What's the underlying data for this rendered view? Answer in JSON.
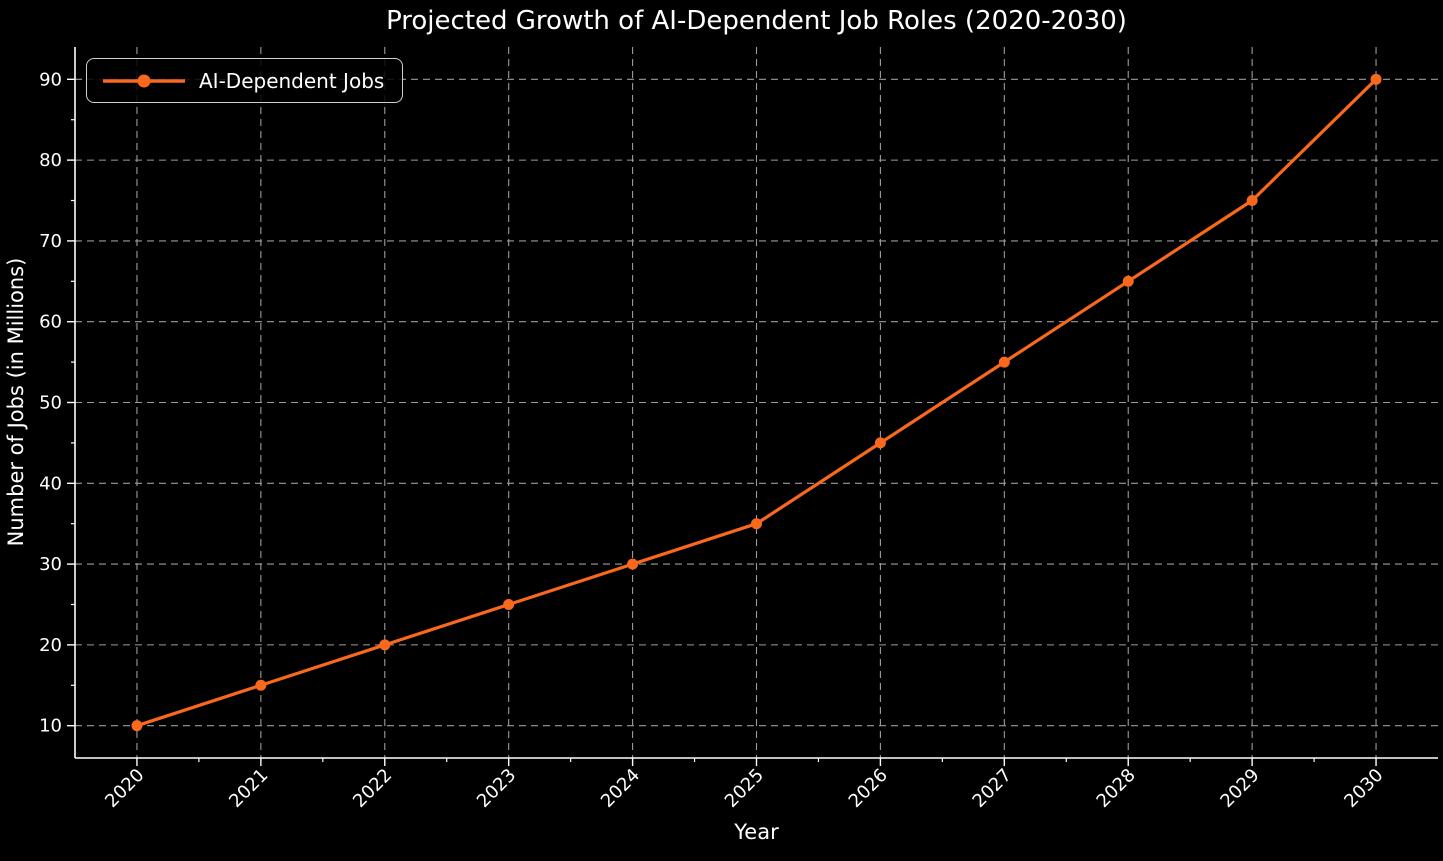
{
  "chart_data": {
    "type": "line",
    "title": "Projected Growth of AI-Dependent Job Roles (2020-2030)",
    "xlabel": "Year",
    "ylabel": "Number of Jobs (in Millions)",
    "categories": [
      2020,
      2021,
      2022,
      2023,
      2024,
      2025,
      2026,
      2027,
      2028,
      2029,
      2030
    ],
    "series": [
      {
        "name": "AI-Dependent Jobs",
        "values": [
          10,
          15,
          20,
          25,
          30,
          35,
          45,
          55,
          65,
          75,
          90
        ],
        "color": "#f9691d",
        "marker": "circle",
        "line_width": 3.2,
        "marker_radius": 5.5
      }
    ],
    "xlim": [
      2019.5,
      2030.5
    ],
    "ylim": [
      6,
      94
    ],
    "yticks": [
      10,
      20,
      30,
      40,
      50,
      60,
      70,
      80,
      90
    ],
    "y_minor_step": 5,
    "x_minor_step": 0.5,
    "grid": true,
    "grid_linestyle": "dashed",
    "legend_position": "upper-left",
    "x_tick_rotation_deg": 45,
    "style": {
      "background": "#000000",
      "text_color": "#ffffff",
      "grid_color": "#9c9c9c",
      "spine_color": "#ffffff",
      "legend_border": "#cfcfcf",
      "tick_font_px": 18
    }
  }
}
